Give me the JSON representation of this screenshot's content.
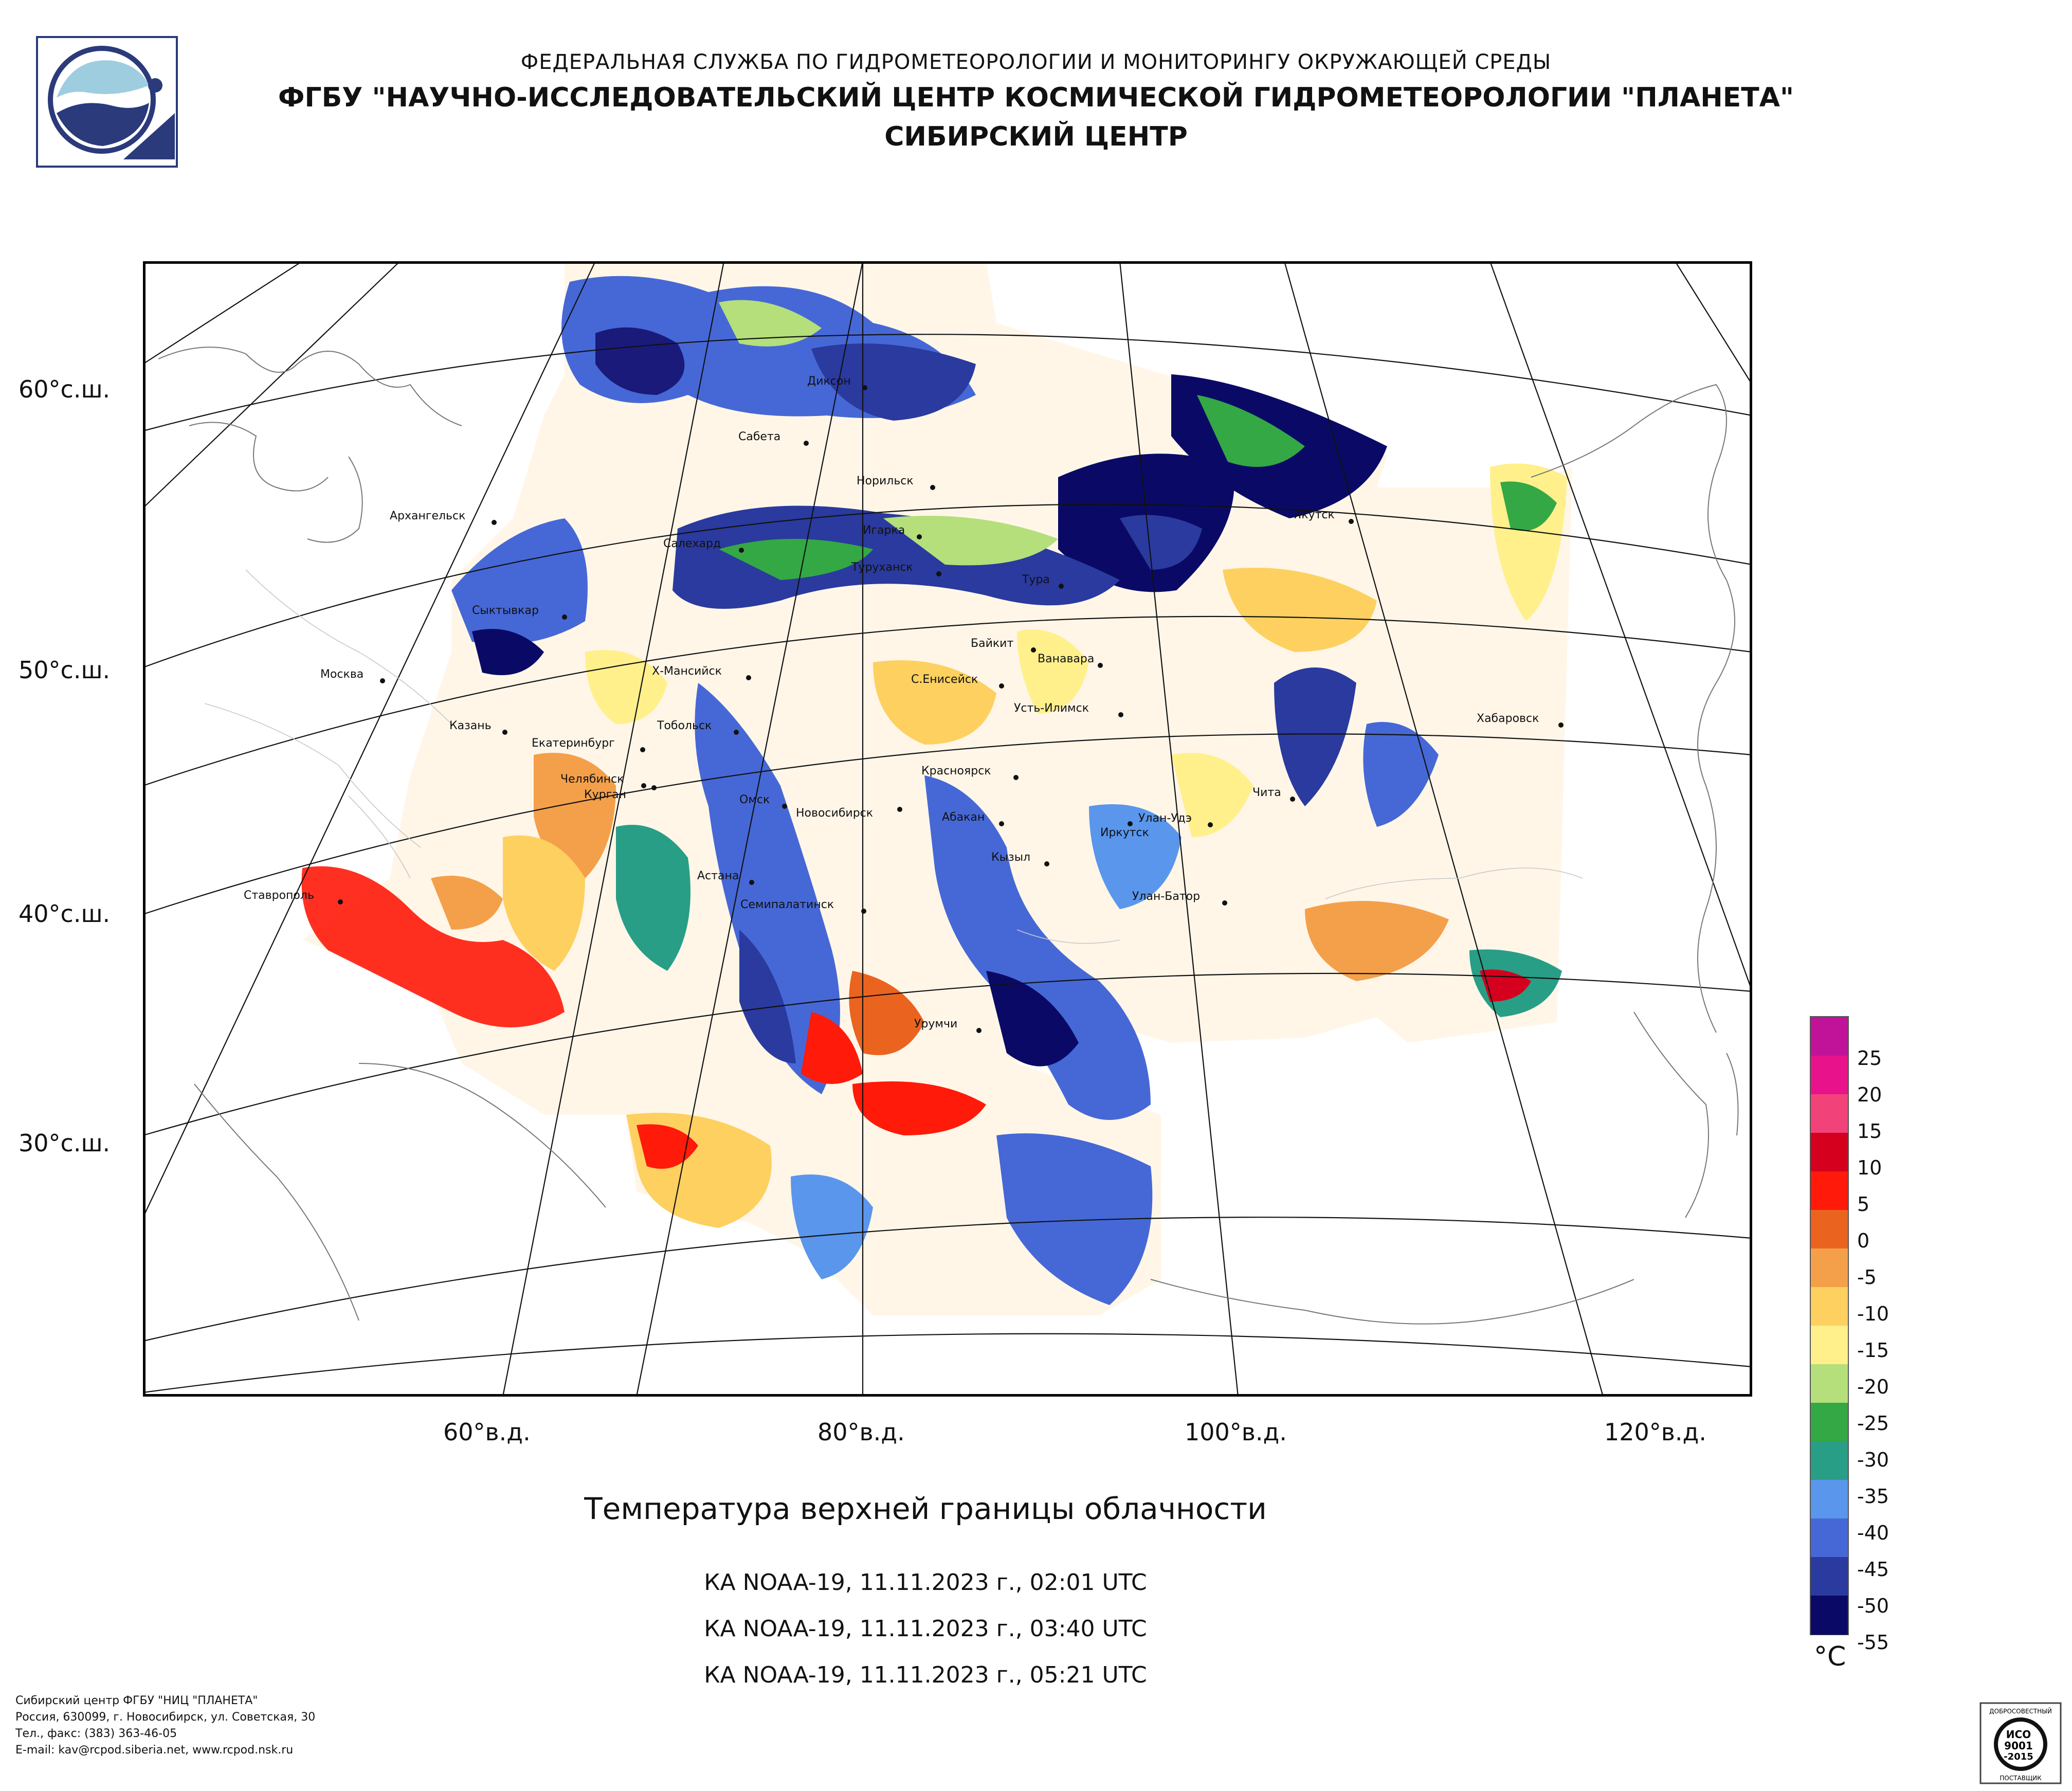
{
  "header": {
    "agency": "ФЕДЕРАЛЬНАЯ СЛУЖБА ПО ГИДРОМЕТЕОРОЛОГИИ И МОНИТОРИНГУ ОКРУЖАЮЩЕЙ СРЕДЫ",
    "center": "ФГБУ \"НАУЧНО-ИССЛЕДОВАТЕЛЬСКИЙ ЦЕНТР КОСМИЧЕСКОЙ ГИДРОМЕТЕОРОЛОГИИ \"ПЛАНЕТА\"",
    "branch": "СИБИРСКИЙ ЦЕНТР"
  },
  "logo_icon": "planeta-logo-icon",
  "map": {
    "latitude_labels": [
      "60°с.ш.",
      "50°с.ш.",
      "40°с.ш.",
      "30°с.ш."
    ],
    "longitude_labels": [
      "60°в.д.",
      "80°в.д.",
      "100°в.д.",
      "120°в.д."
    ],
    "cities": [
      "Диксон",
      "Сабета",
      "Норильск",
      "Якутск",
      "Архангельск",
      "Игарка",
      "Салехард",
      "Туруханск",
      "Тура",
      "Сыктывкар",
      "Байкит",
      "Ванавара",
      "Москва",
      "Х-Мансийск",
      "С.Енисейск",
      "Усть-Илимск",
      "Казань",
      "Тобольск",
      "Хабаровск",
      "Екатеринбург",
      "Красноярск",
      "Челябинск",
      "Курган",
      "Чита",
      "Омск",
      "Новосибирск",
      "Абакан",
      "Улан-Удэ",
      "Иркутск",
      "Кызыл",
      "Ставрополь",
      "Астана",
      "Улан-Батор",
      "Семипалатинск",
      "Урумчи"
    ]
  },
  "titles": {
    "main": "Температура верхней границы облачности",
    "passes": [
      "КА NOAA-19, 11.11.2023 г., 02:01 UTC",
      "КА NOAA-19, 11.11.2023 г., 03:40 UTC",
      "КА NOAA-19, 11.11.2023 г., 05:21 UTC"
    ]
  },
  "legend": {
    "unit": "°C",
    "labels": [
      "25",
      "20",
      "15",
      "10",
      "5",
      "0",
      "-5",
      "-10",
      "-15",
      "-20",
      "-25",
      "-30",
      "-35",
      "-40",
      "-45",
      "-50",
      "-55"
    ],
    "colors": [
      "#c0139a",
      "#e8128a",
      "#f2427a",
      "#d4001e",
      "#ff1a0a",
      "#ea6420",
      "#f4a04a",
      "#fdd060",
      "#fff08c",
      "#b4df7a",
      "#34a844",
      "#289e86",
      "#5a96ec",
      "#4668d6",
      "#2a3a9e",
      "#0a0a66"
    ]
  },
  "footer": {
    "lines": [
      "Сибирский центр ФГБУ \"НИЦ \"ПЛАНЕТА\"",
      "Россия, 630099, г. Новосибирск, ул. Советская, 30",
      "Тел., факс: (383) 363-46-05",
      "E-mail: kav@rcpod.siberia.net, www.rcpod.nsk.ru"
    ]
  },
  "certificate": {
    "top": "ДОБРОСОВЕСТНЫЙ",
    "l1": "ИСО",
    "l2": "9001",
    "l3": "-2015",
    "bottom": "ПОСТАВЩИК"
  }
}
